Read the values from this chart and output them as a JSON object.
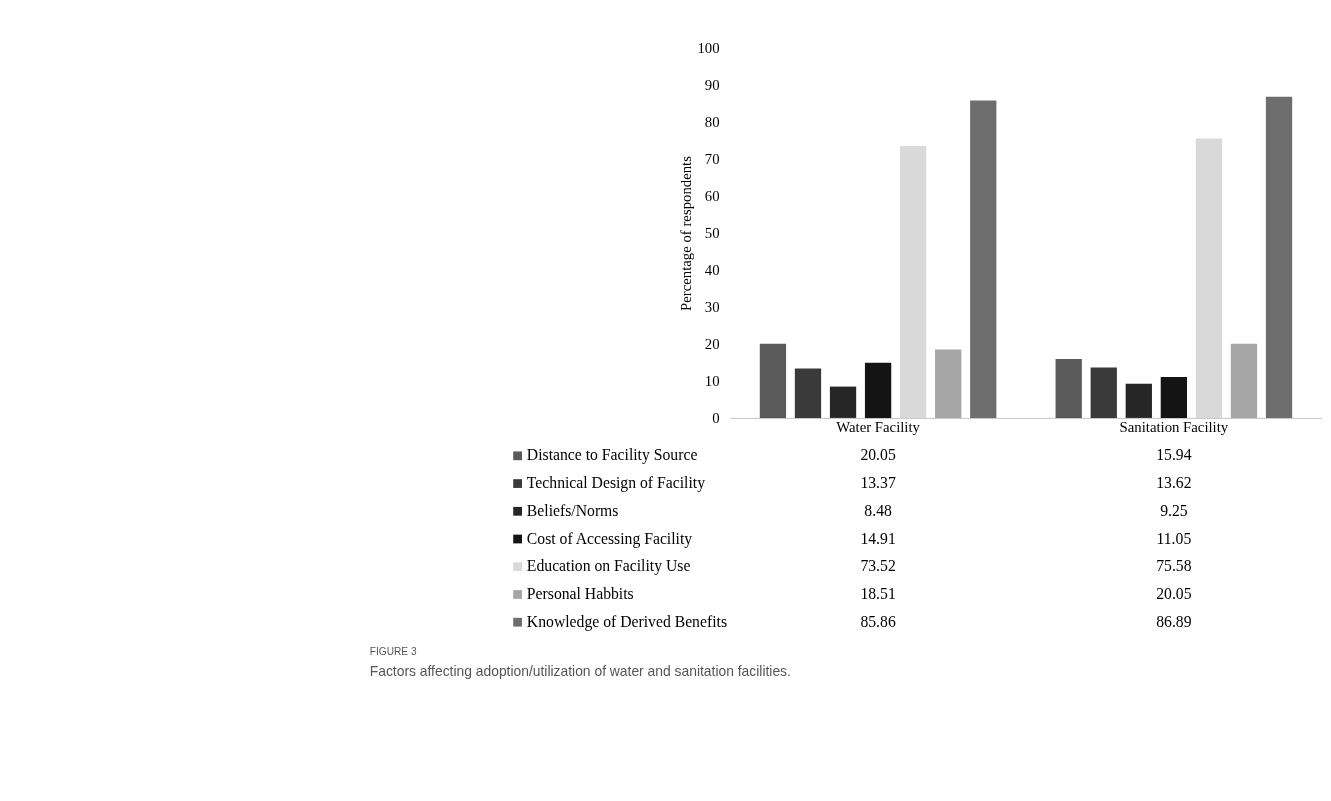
{
  "chart_data": {
    "type": "bar",
    "ylabel": "Percentage of respondents",
    "categories": [
      "Water Facility",
      "Sanitation Facility"
    ],
    "series": [
      {
        "name": "Distance to Facility Source",
        "color": "#5a5a5a",
        "values": [
          20.05,
          15.94
        ]
      },
      {
        "name": "Technical Design of Facility",
        "color": "#3a3a3a",
        "values": [
          13.37,
          13.62
        ]
      },
      {
        "name": "Beliefs/Norms",
        "color": "#262626",
        "values": [
          8.48,
          9.25
        ]
      },
      {
        "name": "Cost of Accessing Facility",
        "color": "#141414",
        "values": [
          14.91,
          11.05
        ]
      },
      {
        "name": "Education on Facility Use",
        "color": "#d9d9d9",
        "values": [
          73.52,
          75.58
        ]
      },
      {
        "name": "Personal Habbits",
        "color": "#a6a6a6",
        "values": [
          18.51,
          20.05
        ]
      },
      {
        "name": "Knowledge of Derived Benefits",
        "color": "#6e6e6e",
        "values": [
          85.86,
          86.89
        ]
      }
    ],
    "ylim": [
      0,
      100
    ],
    "yticks": [
      0,
      10,
      20,
      30,
      40,
      50,
      60,
      70,
      80,
      90,
      100
    ],
    "grid": false,
    "legend": "bottom",
    "data_labels": true,
    "annotations": [
      "FIGURE 3",
      "Factors affecting adoption/utilization of water and sanitation facilities."
    ]
  }
}
